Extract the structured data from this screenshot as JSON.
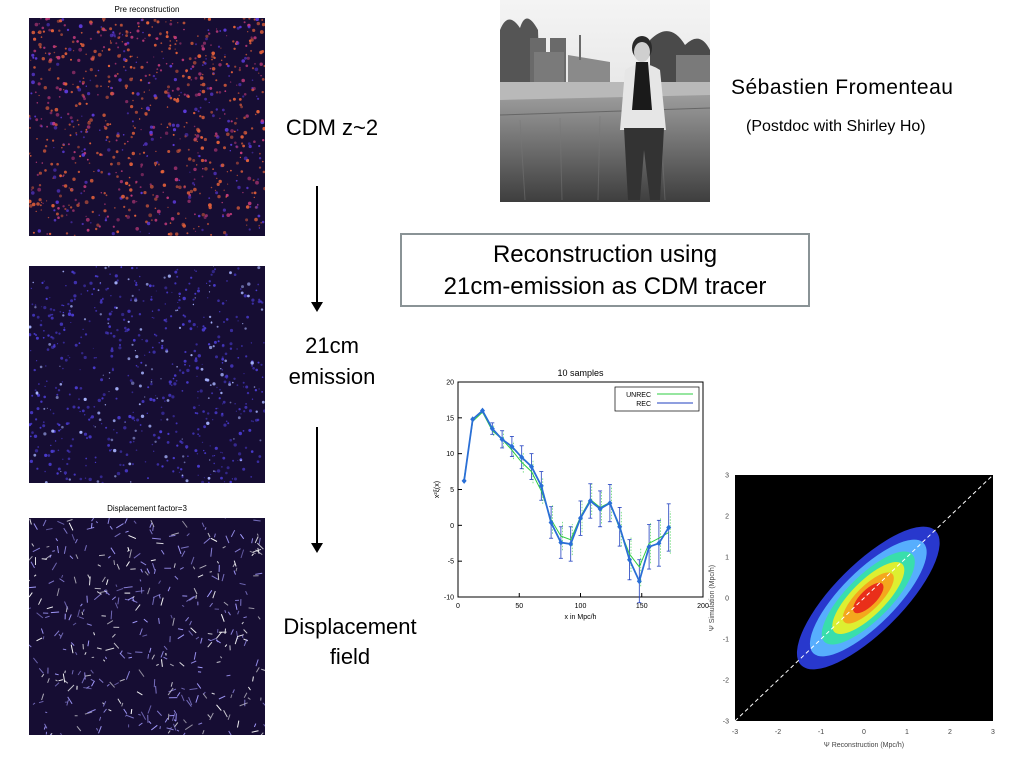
{
  "panels": {
    "top_title": "Pre reconstruction",
    "bottom_title": "Displacement factor=3"
  },
  "labels": {
    "cdm": "CDM z~2",
    "emission_line1": "21cm",
    "emission_line2": "emission",
    "displacement_line1": "Displacement",
    "displacement_line2": "field"
  },
  "person": {
    "name": "Sébastien Fromenteau",
    "role": "(Postdoc with Shirley Ho)"
  },
  "box": {
    "line1": "Reconstruction using",
    "line2": "21cm-emission as CDM tracer"
  },
  "chart_data": [
    {
      "type": "line",
      "title": "10 samples",
      "xlabel": "x in Mpc/h",
      "ylabel": "x²ξ(x)",
      "xlim": [
        0,
        200
      ],
      "ylim": [
        -10,
        20
      ],
      "xticks": [
        0,
        50,
        100,
        150,
        200
      ],
      "yticks": [
        -10,
        -5,
        0,
        5,
        10,
        15,
        20
      ],
      "legend": "top-right",
      "x": [
        5,
        12,
        20,
        28,
        36,
        44,
        52,
        60,
        68,
        76,
        84,
        92,
        100,
        108,
        116,
        124,
        132,
        140,
        148,
        156,
        164,
        172
      ],
      "series": [
        {
          "name": "UNREC",
          "color": "#2ecc40",
          "values": [
            6.5,
            14.5,
            15.8,
            13.2,
            12.0,
            10.5,
            8.8,
            7.5,
            4.8,
            0.8,
            -1.5,
            -2.0,
            1.2,
            3.6,
            2.5,
            3.2,
            -0.5,
            -4.0,
            -5.8,
            -2.5,
            -1.8,
            -1.0
          ]
        },
        {
          "name": "REC",
          "color": "#1f3fbf",
          "values": [
            6.2,
            14.8,
            16.0,
            13.5,
            12.0,
            11.0,
            9.5,
            8.2,
            5.5,
            0.4,
            -2.4,
            -2.6,
            1.0,
            3.4,
            2.3,
            3.1,
            -0.2,
            -4.8,
            -7.8,
            -3.0,
            -2.5,
            -0.3
          ]
        }
      ],
      "error": [
        0,
        0,
        0,
        0.8,
        1.2,
        1.4,
        1.6,
        1.8,
        2.0,
        2.2,
        2.2,
        2.4,
        2.4,
        2.4,
        2.5,
        2.6,
        2.7,
        2.8,
        3.0,
        3.1,
        3.2,
        3.3
      ]
    },
    {
      "type": "heatmap",
      "xlabel": "Ψ Reconstruction (Mpc/h)",
      "ylabel": "Ψ Simulation (Mpc/h)",
      "xlim": [
        -3,
        3
      ],
      "ylim": [
        -3,
        3
      ],
      "xticks": [
        -3,
        -2,
        -1,
        0,
        1,
        2,
        3
      ],
      "yticks": [
        -3,
        -2,
        -1,
        0,
        1,
        2,
        3
      ],
      "diagonal": "dashed white y=x",
      "colors": [
        "#000000",
        "#2a3bd8",
        "#5ab4ff",
        "#38e0a8",
        "#e6ef2a",
        "#f4a21c",
        "#e8281a"
      ]
    }
  ]
}
